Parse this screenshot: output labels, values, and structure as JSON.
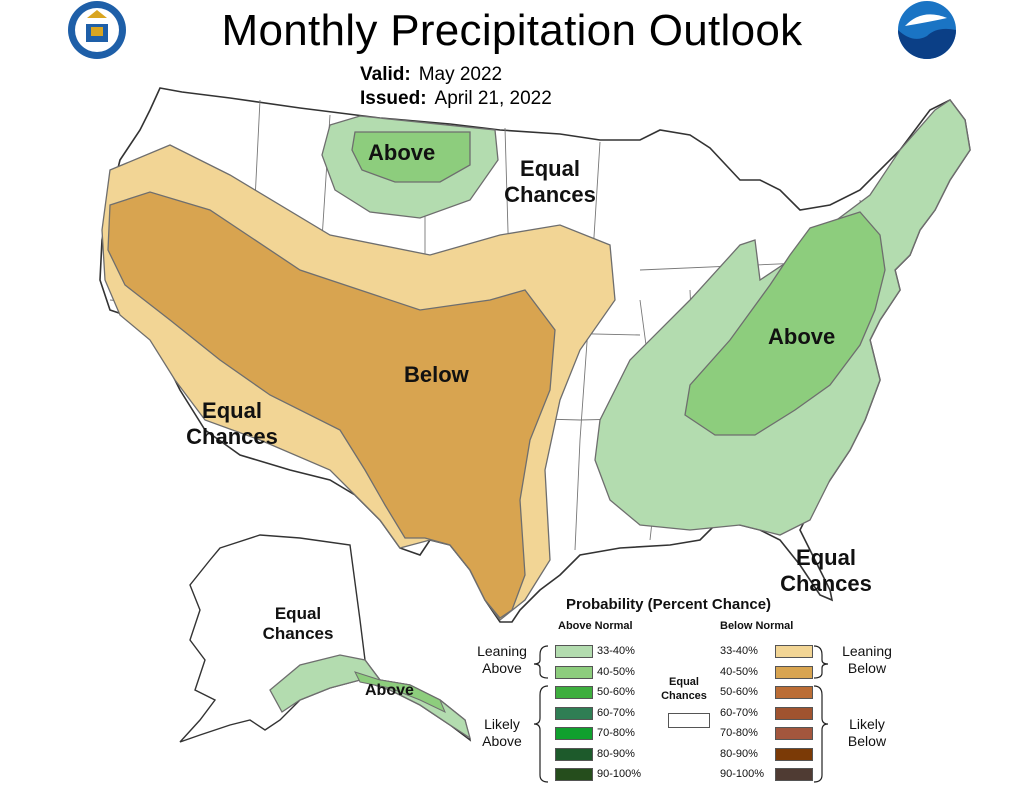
{
  "title": "Monthly Precipitation Outlook",
  "valid": {
    "label": "Valid:",
    "value": "May 2022"
  },
  "issued": {
    "label": "Issued:",
    "value": "April 21, 2022"
  },
  "logos": {
    "left": "department-of-commerce-seal-icon",
    "right": "noaa-logo-icon"
  },
  "regions": [
    {
      "id": "above-north",
      "text": "Above"
    },
    {
      "id": "ec-north",
      "text": "Equal Chances"
    },
    {
      "id": "below",
      "text": "Below"
    },
    {
      "id": "ec-west",
      "text": "Equal Chances"
    },
    {
      "id": "above-east",
      "text": "Above"
    },
    {
      "id": "ec-southeast",
      "text": "Equal Chances"
    },
    {
      "id": "ec-alaska",
      "text": "Equal Chances"
    },
    {
      "id": "above-alaska",
      "text": "Above"
    }
  ],
  "legend": {
    "title": "Probability (Percent Chance)",
    "above_header": "Above Normal",
    "below_header": "Below Normal",
    "equal_label": "Equal Chances",
    "leaning_above": "Leaning Above",
    "likely_above": "Likely Above",
    "leaning_below": "Leaning Below",
    "likely_below": "Likely Below",
    "above": [
      {
        "range": "33-40%",
        "color": "#b3dcaf"
      },
      {
        "range": "40-50%",
        "color": "#8dcd7d"
      },
      {
        "range": "50-60%",
        "color": "#3eae3e"
      },
      {
        "range": "60-70%",
        "color": "#2f7e54"
      },
      {
        "range": "70-80%",
        "color": "#10a02e"
      },
      {
        "range": "80-90%",
        "color": "#1d5a2b"
      },
      {
        "range": "90-100%",
        "color": "#254d1c"
      }
    ],
    "below": [
      {
        "range": "33-40%",
        "color": "#f2d595"
      },
      {
        "range": "40-50%",
        "color": "#d8a450"
      },
      {
        "range": "50-60%",
        "color": "#bb6d35"
      },
      {
        "range": "60-70%",
        "color": "#a0532f"
      },
      {
        "range": "70-80%",
        "color": "#a3563d"
      },
      {
        "range": "80-90%",
        "color": "#7b3a06"
      },
      {
        "range": "90-100%",
        "color": "#4f3b33"
      }
    ],
    "equal_color": "#ffffff"
  }
}
